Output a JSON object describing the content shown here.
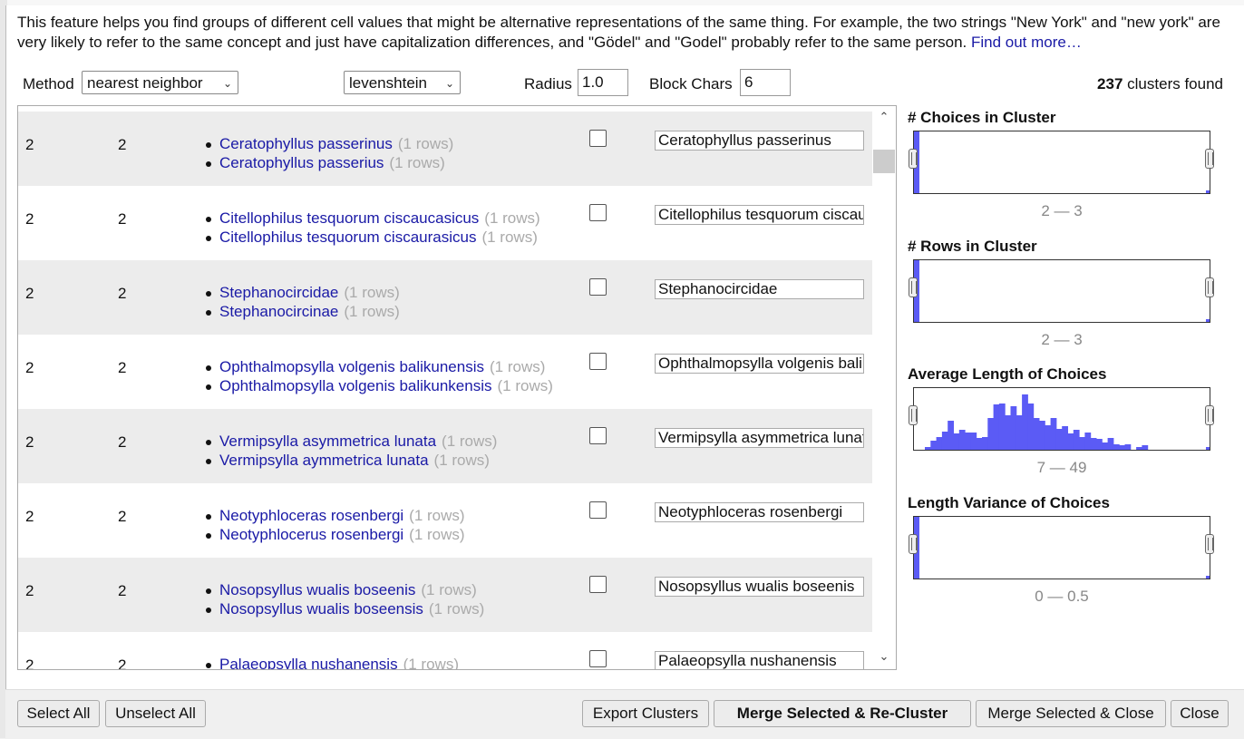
{
  "description": {
    "text": "This feature helps you find groups of different cell values that might be alternative representations of the same thing. For example, the two strings \"New York\" and \"new york\" are very likely to refer to the same concept and just have capitalization differences, and \"Gödel\" and \"Godel\" probably refer to the same person.",
    "link": "Find out more…"
  },
  "controls": {
    "method_label": "Method",
    "method_value": "nearest neighbor",
    "distance_value": "levenshtein",
    "radius_label": "Radius",
    "radius_value": "1.0",
    "block_label": "Block Chars",
    "block_value": "6",
    "clusters_count": "237",
    "clusters_suffix": "clusters found"
  },
  "clusters": [
    {
      "size": "2",
      "rows": "2",
      "values": [
        {
          "name": "Ceratophyllus passerinus",
          "count": "(1 rows)"
        },
        {
          "name": "Ceratophyllus passerius",
          "count": "(1 rows)"
        }
      ],
      "merge": false,
      "new_value": "Ceratophyllus passerinus"
    },
    {
      "size": "2",
      "rows": "2",
      "values": [
        {
          "name": "Citellophilus tesquorum ciscaucasicus",
          "count": "(1 rows)"
        },
        {
          "name": "Citellophilus tesquorum ciscaurasicus",
          "count": "(1 rows)"
        }
      ],
      "merge": false,
      "new_value": "Citellophilus tesquorum ciscaucasicus"
    },
    {
      "size": "2",
      "rows": "2",
      "values": [
        {
          "name": "Stephanocircidae",
          "count": "(1 rows)"
        },
        {
          "name": "Stephanocircinae",
          "count": "(1 rows)"
        }
      ],
      "merge": false,
      "new_value": "Stephanocircidae"
    },
    {
      "size": "2",
      "rows": "2",
      "values": [
        {
          "name": "Ophthalmopsylla volgenis balikunensis",
          "count": "(1 rows)"
        },
        {
          "name": "Ophthalmopsylla volgenis balikunkensis",
          "count": "(1 rows)"
        }
      ],
      "merge": false,
      "new_value": "Ophthalmopsylla volgenis balikunensis"
    },
    {
      "size": "2",
      "rows": "2",
      "values": [
        {
          "name": "Vermipsylla asymmetrica lunata",
          "count": "(1 rows)"
        },
        {
          "name": "Vermipsylla aymmetrica lunata",
          "count": "(1 rows)"
        }
      ],
      "merge": false,
      "new_value": "Vermipsylla asymmetrica lunata"
    },
    {
      "size": "2",
      "rows": "2",
      "values": [
        {
          "name": "Neotyphloceras rosenbergi",
          "count": "(1 rows)"
        },
        {
          "name": "Neotyphlocerus rosenbergi",
          "count": "(1 rows)"
        }
      ],
      "merge": false,
      "new_value": "Neotyphloceras rosenbergi"
    },
    {
      "size": "2",
      "rows": "2",
      "values": [
        {
          "name": "Nosopsyllus wualis boseenis",
          "count": "(1 rows)"
        },
        {
          "name": "Nosopsyllus wualis boseensis",
          "count": "(1 rows)"
        }
      ],
      "merge": false,
      "new_value": "Nosopsyllus wualis boseenis"
    },
    {
      "size": "2",
      "rows": "2",
      "values": [
        {
          "name": "Palaeopsylla nushanensis",
          "count": "(1 rows)"
        },
        {
          "name": "",
          "count": ""
        }
      ],
      "merge": false,
      "new_value": "Palaeopsylla nushanensis"
    }
  ],
  "facets": [
    {
      "title": "# Choices in Cluster",
      "range": "2 — 3",
      "bars": [
        1
      ],
      "bar_color": "#5b5bf5"
    },
    {
      "title": "# Rows in Cluster",
      "range": "2 — 3",
      "bars": [
        1
      ],
      "bar_color": "#5b5bf5"
    },
    {
      "title": "Average Length of Choices",
      "range": "7 — 49",
      "bars": [
        0.05,
        0.15,
        0.22,
        0.32,
        0.5,
        0.28,
        0.35,
        0.3,
        0.3,
        0.2,
        0.22,
        0.55,
        0.78,
        0.8,
        0.6,
        0.75,
        0.6,
        0.95,
        0.8,
        0.55,
        0.5,
        0.42,
        0.55,
        0.36,
        0.4,
        0.28,
        0.35,
        0.22,
        0.3,
        0.2,
        0.18,
        0.12,
        0.2,
        0.1,
        0.08,
        0.1,
        0,
        0.05,
        0.08
      ],
      "bar_color": "#5b5bf5"
    },
    {
      "title": "Length Variance of Choices",
      "range": "0 — 0.5",
      "bars": [
        1
      ],
      "bar_color": "#5b5bf5"
    }
  ],
  "footer": {
    "select_all": "Select All",
    "unselect_all": "Unselect All",
    "export": "Export Clusters",
    "merge_recluster": "Merge Selected & Re-Cluster",
    "merge_close": "Merge Selected & Close",
    "close": "Close"
  }
}
